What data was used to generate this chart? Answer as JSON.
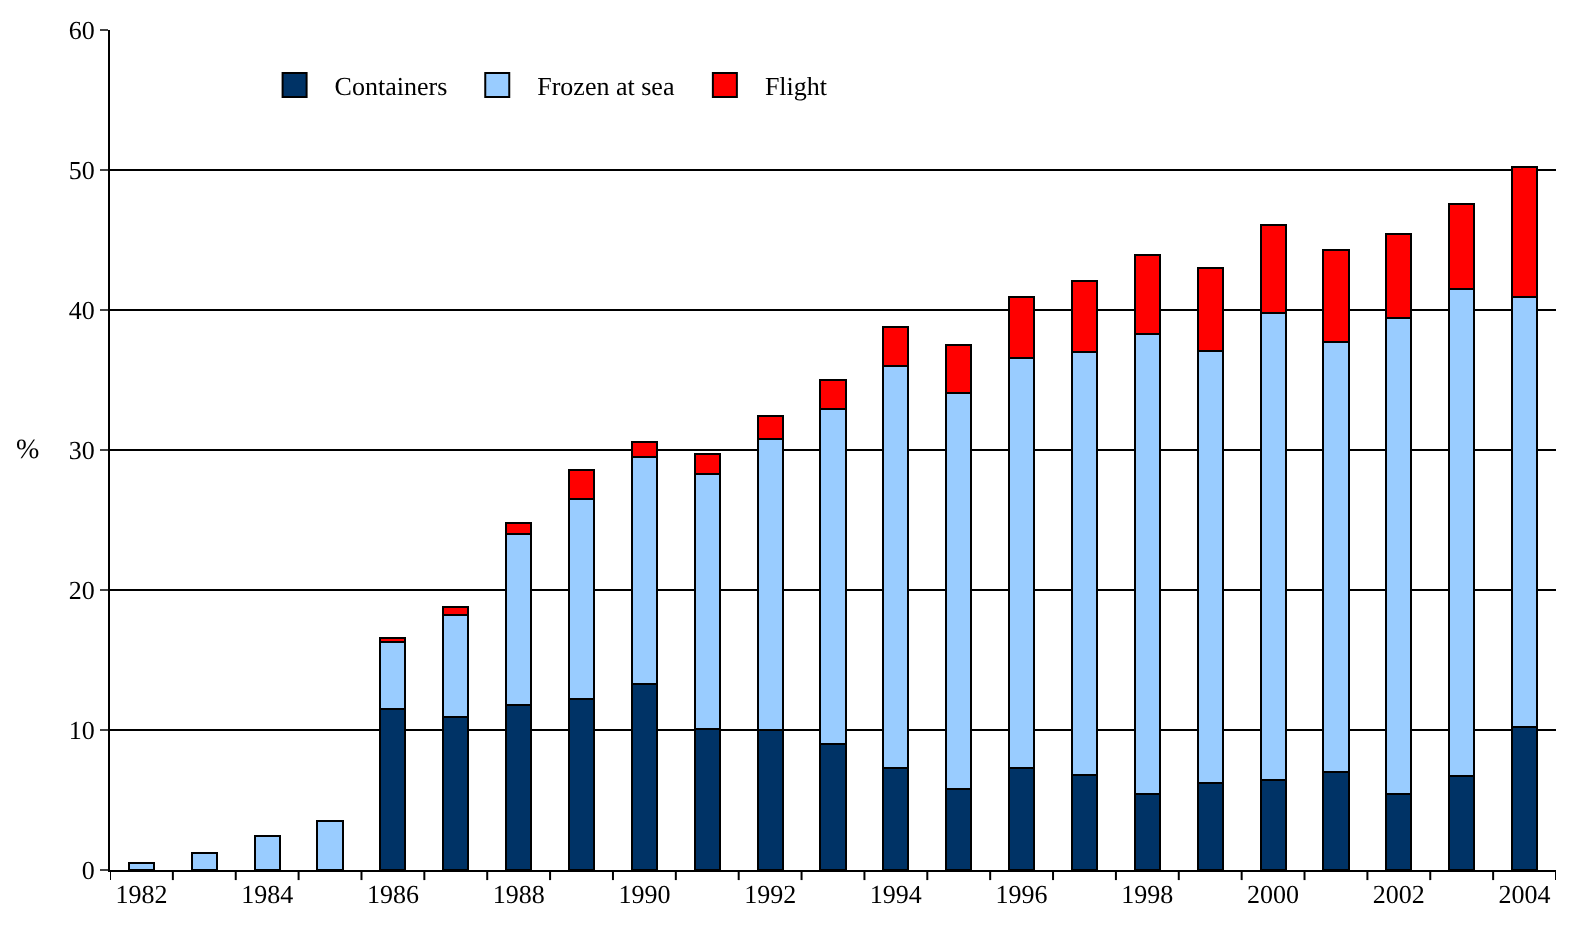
{
  "chart_data": {
    "type": "bar",
    "stacked": true,
    "ylabel": "%",
    "categories": [
      "1982",
      null,
      "1984",
      null,
      "1986",
      null,
      "1988",
      null,
      "1990",
      null,
      "1992",
      null,
      "1994",
      null,
      "1996",
      null,
      "1998",
      null,
      "2000",
      null,
      "2002",
      null,
      "2004"
    ],
    "series": [
      {
        "name": "Containers",
        "color": "#003366",
        "values": [
          null,
          null,
          null,
          null,
          11.5,
          10.9,
          11.8,
          12.2,
          13.3,
          10.1,
          10.0,
          9.0,
          7.3,
          5.8,
          7.3,
          6.8,
          5.4,
          6.2,
          6.4,
          7.0,
          5.4,
          6.7,
          10.2
        ]
      },
      {
        "name": "Frozen at sea",
        "color": "#99ccff",
        "values": [
          0.5,
          1.2,
          2.4,
          3.5,
          4.8,
          7.3,
          12.2,
          14.3,
          16.2,
          18.2,
          20.8,
          23.9,
          28.7,
          28.3,
          29.3,
          30.2,
          32.9,
          30.9,
          33.4,
          30.7,
          34.0,
          34.8,
          30.7
        ]
      },
      {
        "name": "Flight",
        "color": "#ff0000",
        "values": [
          null,
          null,
          null,
          null,
          0.3,
          0.6,
          0.8,
          2.1,
          1.1,
          1.4,
          1.6,
          2.1,
          2.8,
          3.4,
          4.3,
          5.1,
          5.6,
          5.9,
          6.3,
          6.6,
          6.0,
          6.1,
          9.3
        ]
      }
    ],
    "ylim": [
      0,
      60
    ],
    "yticks": [
      0,
      10,
      20,
      30,
      40,
      50,
      60
    ],
    "grid": "y",
    "legend": "top left"
  }
}
